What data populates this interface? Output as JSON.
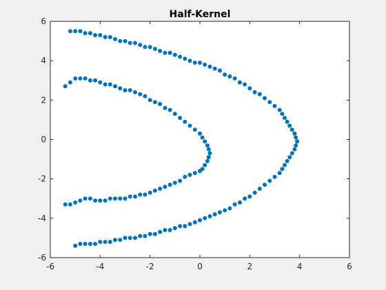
{
  "chart_data": {
    "type": "scatter",
    "title": "Half-Kernel",
    "xlabel": "",
    "ylabel": "",
    "xlim": [
      -6,
      6
    ],
    "ylim": [
      -6,
      6
    ],
    "x_ticks": [
      -6,
      -4,
      -2,
      0,
      2,
      4,
      6
    ],
    "y_ticks": [
      -6,
      -4,
      -2,
      0,
      2,
      4,
      6
    ],
    "grid": false,
    "legend": "none",
    "marker_color": "#0072BD",
    "series": [
      {
        "shape": "inner half-ring",
        "x": [
          -5.4,
          -5.2,
          -5,
          -4.8,
          -4.6,
          -4.4,
          -4.2,
          -4,
          -3.8,
          -3.6,
          -3.4,
          -3.2,
          -3,
          -2.8,
          -2.6,
          -2.4,
          -2.2,
          -2,
          -1.8,
          -1.6,
          -1.4,
          -1.2,
          -1,
          -0.8,
          -0.6,
          -0.4,
          -0.2,
          0,
          0.1,
          0.2,
          0.3,
          0.35,
          0.4,
          0.35,
          0.3,
          0.2,
          0.1,
          0,
          -0.2,
          -0.4,
          -0.6,
          -0.8,
          -1,
          -1.2,
          -1.4,
          -1.6,
          -1.8,
          -2,
          -2.2,
          -2.4,
          -2.6,
          -2.8,
          -3,
          -3.2,
          -3.4,
          -3.6,
          -3.8,
          -4,
          -4.2,
          -4.4,
          -4.6,
          -4.8,
          -5,
          -5.2,
          -5.4
        ],
        "y": [
          2.7,
          2.9,
          3.1,
          3.1,
          3.1,
          3,
          3,
          2.9,
          2.8,
          2.8,
          2.7,
          2.6,
          2.5,
          2.5,
          2.4,
          2.3,
          2.2,
          2,
          1.9,
          1.8,
          1.6,
          1.5,
          1.3,
          1.1,
          0.9,
          0.7,
          0.5,
          0.3,
          0.1,
          -0.1,
          -0.3,
          -0.5,
          -0.7,
          -0.9,
          -1.1,
          -1.3,
          -1.5,
          -1.6,
          -1.7,
          -1.8,
          -1.9,
          -2.1,
          -2.2,
          -2.3,
          -2.4,
          -2.5,
          -2.6,
          -2.7,
          -2.8,
          -2.8,
          -2.9,
          -2.9,
          -3,
          -3,
          -3,
          -3,
          -3.1,
          -3.1,
          -3.1,
          -3,
          -3,
          -3.1,
          -3.2,
          -3.3,
          -3.3
        ]
      },
      {
        "shape": "outer half-ring",
        "x": [
          -5.2,
          -5,
          -4.8,
          -4.6,
          -4.4,
          -4.2,
          -4,
          -3.8,
          -3.6,
          -3.4,
          -3.2,
          -3,
          -2.8,
          -2.6,
          -2.4,
          -2.2,
          -2,
          -1.8,
          -1.6,
          -1.4,
          -1.2,
          -1,
          -0.8,
          -0.6,
          -0.4,
          -0.2,
          0,
          0.2,
          0.4,
          0.6,
          0.8,
          1,
          1.2,
          1.4,
          1.6,
          1.8,
          2,
          2.2,
          2.4,
          2.6,
          2.8,
          3,
          3.2,
          3.3,
          3.4,
          3.5,
          3.6,
          3.7,
          3.8,
          3.85,
          3.9,
          3.85,
          3.8,
          3.7,
          3.6,
          3.5,
          3.4,
          3.3,
          3.2,
          3,
          2.8,
          2.6,
          2.4,
          2.2,
          2,
          1.8,
          1.6,
          1.4,
          1.2,
          1,
          0.8,
          0.6,
          0.4,
          0.2,
          0,
          -0.2,
          -0.4,
          -0.6,
          -0.8,
          -1,
          -1.2,
          -1.4,
          -1.6,
          -1.8,
          -2,
          -2.2,
          -2.4,
          -2.6,
          -2.8,
          -3,
          -3.2,
          -3.4,
          -3.6,
          -3.8,
          -4,
          -4.2,
          -4.4,
          -4.6,
          -4.8,
          -5
        ],
        "y": [
          5.5,
          5.5,
          5.5,
          5.4,
          5.4,
          5.3,
          5.3,
          5.2,
          5.2,
          5.1,
          5,
          5,
          4.9,
          4.9,
          4.8,
          4.7,
          4.7,
          4.6,
          4.5,
          4.4,
          4.4,
          4.3,
          4.2,
          4.1,
          4,
          3.9,
          3.9,
          3.8,
          3.7,
          3.6,
          3.5,
          3.3,
          3.2,
          3.1,
          2.9,
          2.8,
          2.6,
          2.4,
          2.3,
          2.1,
          1.9,
          1.7,
          1.5,
          1.3,
          1.1,
          0.9,
          0.7,
          0.5,
          0.3,
          0.1,
          -0.1,
          -0.3,
          -0.5,
          -0.7,
          -0.9,
          -1.1,
          -1.3,
          -1.5,
          -1.7,
          -1.9,
          -2.1,
          -2.3,
          -2.5,
          -2.7,
          -2.9,
          -3,
          -3.2,
          -3.3,
          -3.5,
          -3.6,
          -3.7,
          -3.8,
          -3.9,
          -4,
          -4.1,
          -4.2,
          -4.3,
          -4.4,
          -4.4,
          -4.5,
          -4.6,
          -4.6,
          -4.7,
          -4.8,
          -4.8,
          -4.9,
          -4.9,
          -5,
          -5,
          -5,
          -5.1,
          -5.1,
          -5.2,
          -5.2,
          -5.2,
          -5.3,
          -5.3,
          -5.3,
          -5.3,
          -5.4
        ]
      }
    ]
  }
}
